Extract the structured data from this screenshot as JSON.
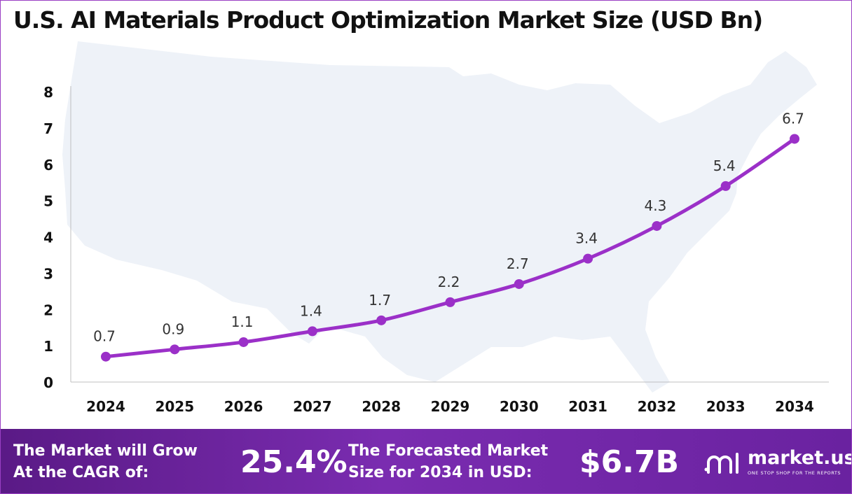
{
  "title": "U.S. AI Materials Product Optimization Market Size (USD Bn)",
  "colors": {
    "line": "#9b30c8",
    "map": "#eef2f8",
    "axis": "#bfbfbf",
    "footer_start": "#5a1a86",
    "footer_end": "#7a2cb0"
  },
  "chart_data": {
    "type": "line",
    "categories": [
      "2024",
      "2025",
      "2026",
      "2027",
      "2028",
      "2029",
      "2030",
      "2031",
      "2032",
      "2033",
      "2034"
    ],
    "values": [
      0.7,
      0.9,
      1.1,
      1.4,
      1.7,
      2.2,
      2.7,
      3.4,
      4.3,
      5.4,
      6.7
    ],
    "data_labels": [
      "0.7",
      "0.9",
      "1.1",
      "1.4",
      "1.7",
      "2.2",
      "2.7",
      "3.4",
      "4.3",
      "5.4",
      "6.7"
    ],
    "y_ticks": [
      "0",
      "1",
      "2",
      "3",
      "4",
      "5",
      "6",
      "7",
      "8"
    ],
    "ylim": [
      0,
      8
    ],
    "grid": false,
    "legend": "none"
  },
  "footer": {
    "cagr_line1": "The Market will Grow",
    "cagr_line2": "At the CAGR of:",
    "cagr_value": "25.4%",
    "forecast_line1": "The Forecasted Market",
    "forecast_line2": "Size for 2034 in USD:",
    "forecast_value": "$6.7B",
    "logo_name": "market.us",
    "logo_tagline": "ONE STOP SHOP FOR THE REPORTS",
    "logo_icon": "market-us-logo-icon"
  }
}
